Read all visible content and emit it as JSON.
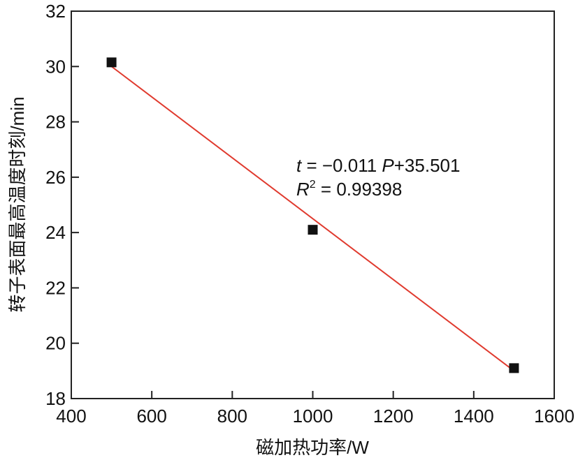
{
  "chart_data": {
    "type": "scatter",
    "title": "",
    "xlabel": "磁加热功率/W",
    "ylabel": "转子表面最高温度时刻/min",
    "xlim": [
      400,
      1600
    ],
    "ylim": [
      18,
      32
    ],
    "xticks": [
      400,
      600,
      800,
      1000,
      1200,
      1400,
      1600
    ],
    "yticks": [
      18,
      20,
      22,
      24,
      26,
      28,
      30,
      32
    ],
    "grid": false,
    "series": [
      {
        "name": "data",
        "x": [
          500,
          1000,
          1500
        ],
        "y": [
          30.15,
          24.1,
          19.1
        ],
        "marker": "square",
        "color": "#111111"
      }
    ],
    "fit": {
      "slope": -0.011,
      "intercept": 35.501,
      "x_range": [
        500,
        1500
      ],
      "color": "#e03a2e"
    },
    "annotations": {
      "equation_var": "t",
      "equation_mid": " = −0.011 ",
      "equation_var2": "P",
      "equation_end": "+35.501",
      "r2_var": "R",
      "r2_sup": "2",
      "r2_end": " = 0.99398"
    }
  }
}
